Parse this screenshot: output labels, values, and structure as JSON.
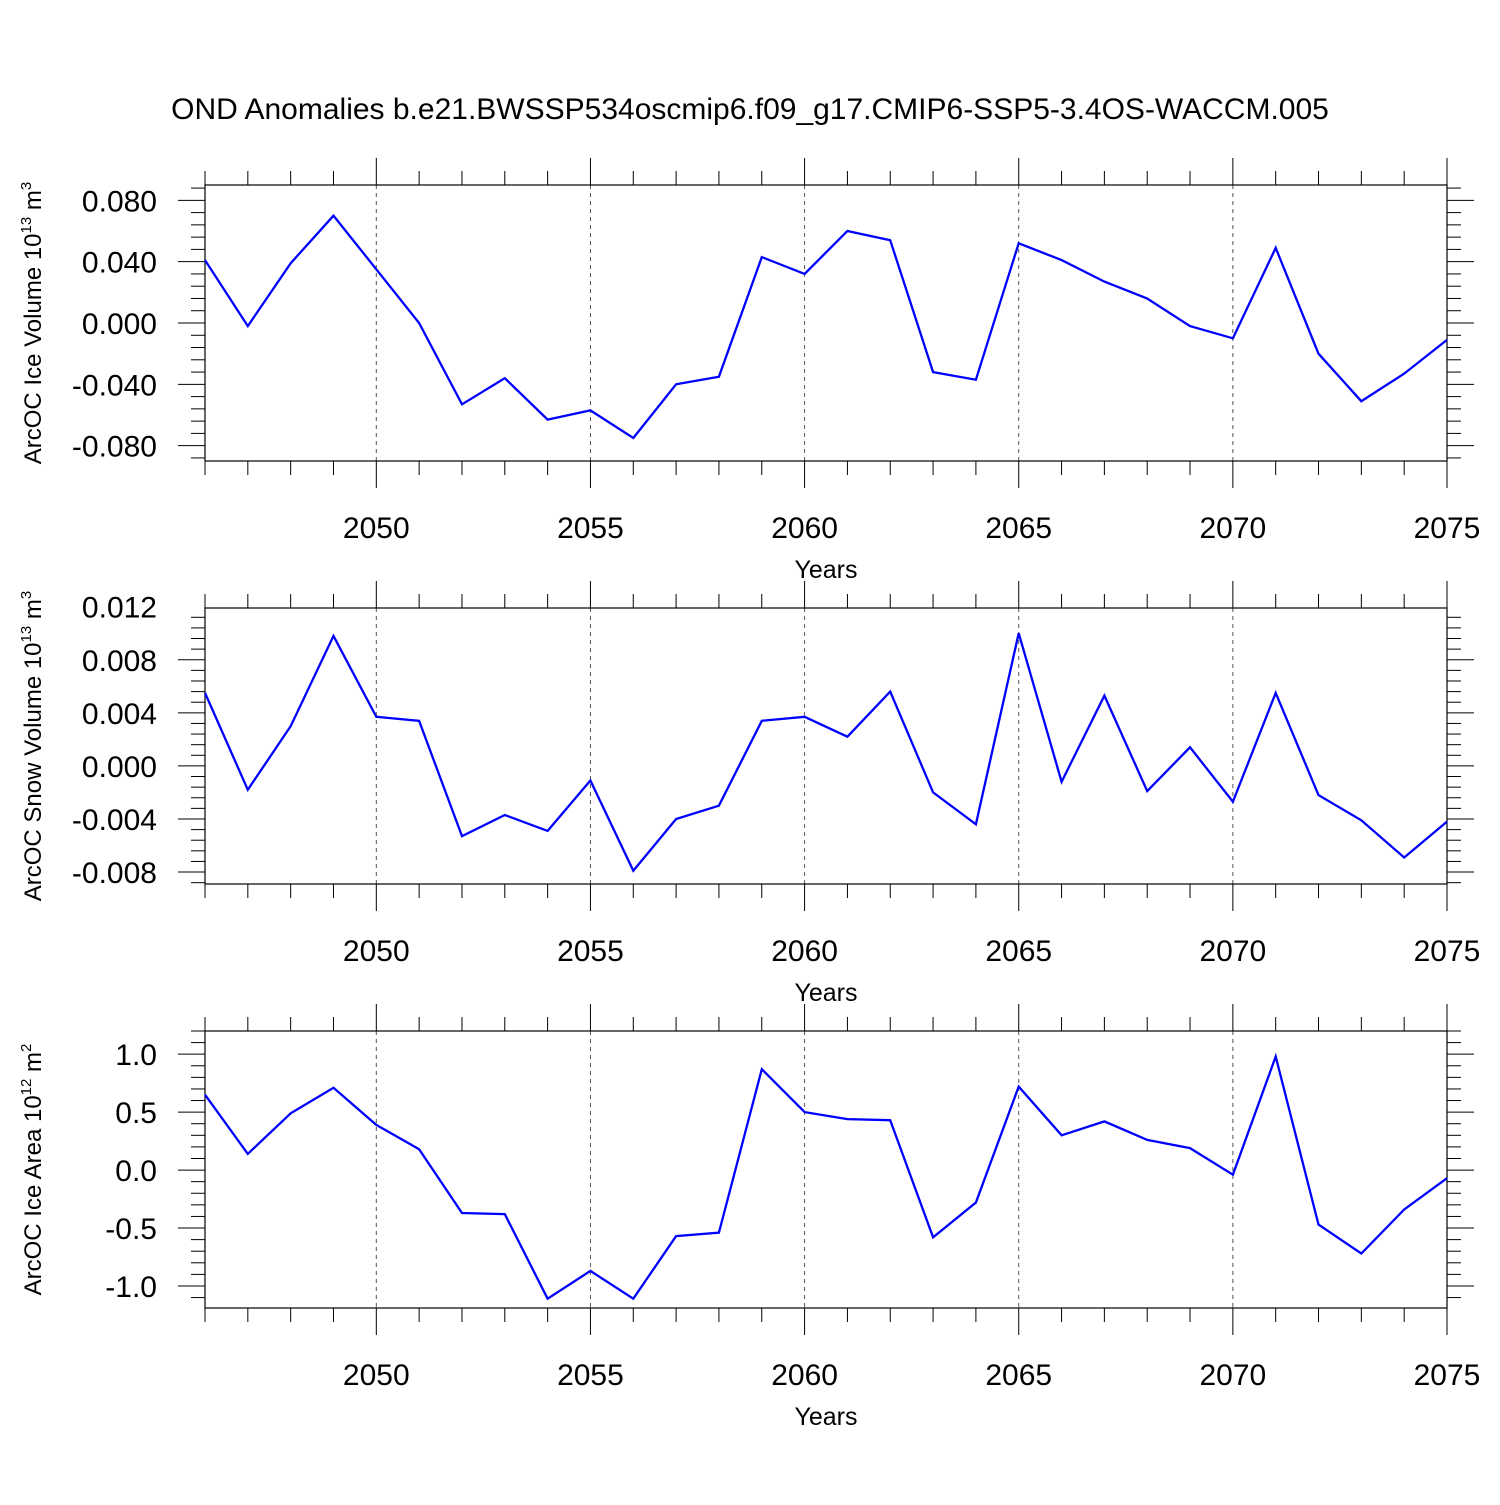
{
  "title": "OND Anomalies b.e21.BWSSP534oscmip6.f09_g17.CMIP6-SSP5-3.4OS-WACCM.005",
  "line_color": "#0000ff",
  "chart_data": [
    {
      "type": "line",
      "ylabel_main": "ArcOC Ice Volume 10",
      "ylabel_exp": "13",
      "ylabel_unit": "m",
      "ylabel_unit_exp": "3",
      "xlabel": "Years",
      "xlim": [
        2046,
        2075
      ],
      "ylim": [
        -0.09,
        0.09
      ],
      "x_ticks": [
        2050,
        2055,
        2060,
        2065,
        2070,
        2075
      ],
      "y_ticks": [
        -0.08,
        -0.04,
        0.0,
        0.04,
        0.08
      ],
      "y_tick_labels": [
        "-0.080",
        "-0.040",
        "0.000",
        "0.040",
        "0.080"
      ],
      "y_minor_step": 0.008,
      "x": [
        2046,
        2047,
        2048,
        2049,
        2050,
        2051,
        2052,
        2053,
        2054,
        2055,
        2056,
        2057,
        2058,
        2059,
        2060,
        2061,
        2062,
        2063,
        2064,
        2065,
        2066,
        2067,
        2068,
        2069,
        2070,
        2071,
        2072,
        2073,
        2074,
        2075
      ],
      "values": [
        0.041,
        -0.002,
        0.039,
        0.07,
        0.035,
        0.0,
        -0.053,
        -0.036,
        -0.063,
        -0.057,
        -0.075,
        -0.04,
        -0.035,
        0.043,
        0.032,
        0.06,
        0.054,
        -0.032,
        -0.037,
        0.052,
        0.041,
        0.027,
        0.016,
        -0.002,
        -0.01,
        0.049,
        -0.02,
        -0.051,
        -0.033,
        -0.011
      ]
    },
    {
      "type": "line",
      "ylabel_main": "ArcOC Snow Volume 10",
      "ylabel_exp": "13",
      "ylabel_unit": "m",
      "ylabel_unit_exp": "3",
      "xlabel": "Years",
      "xlim": [
        2046,
        2075
      ],
      "ylim": [
        -0.0089,
        0.0119
      ],
      "x_ticks": [
        2050,
        2055,
        2060,
        2065,
        2070,
        2075
      ],
      "y_ticks": [
        -0.008,
        -0.004,
        0.0,
        0.004,
        0.008,
        0.012
      ],
      "y_tick_labels": [
        "-0.008",
        "-0.004",
        "0.000",
        "0.004",
        "0.008",
        "0.012"
      ],
      "y_minor_step": 0.0008,
      "x": [
        2046,
        2047,
        2048,
        2049,
        2050,
        2051,
        2052,
        2053,
        2054,
        2055,
        2056,
        2057,
        2058,
        2059,
        2060,
        2061,
        2062,
        2063,
        2064,
        2065,
        2066,
        2067,
        2068,
        2069,
        2070,
        2071,
        2072,
        2073,
        2074,
        2075
      ],
      "values": [
        0.0055,
        -0.0018,
        0.003,
        0.0098,
        0.0037,
        0.0034,
        -0.0053,
        -0.0037,
        -0.0049,
        -0.0011,
        -0.0079,
        -0.004,
        -0.003,
        0.0034,
        0.0037,
        0.0022,
        0.0056,
        -0.002,
        -0.0044,
        0.01,
        -0.0012,
        0.0053,
        -0.0019,
        0.0014,
        -0.0027,
        0.0055,
        -0.0022,
        -0.0041,
        -0.0069,
        -0.0042
      ]
    },
    {
      "type": "line",
      "ylabel_main": "ArcOC Ice Area 10",
      "ylabel_exp": "12",
      "ylabel_unit": "m",
      "ylabel_unit_exp": "2",
      "xlabel": "Years",
      "xlim": [
        2046,
        2075
      ],
      "ylim": [
        -1.19,
        1.2
      ],
      "x_ticks": [
        2050,
        2055,
        2060,
        2065,
        2070,
        2075
      ],
      "y_ticks": [
        -1.0,
        -0.5,
        0.0,
        0.5,
        1.0
      ],
      "y_tick_labels": [
        "-1.0",
        "-0.5",
        "0.0",
        "0.5",
        "1.0"
      ],
      "y_minor_step": 0.1,
      "x": [
        2046,
        2047,
        2048,
        2049,
        2050,
        2051,
        2052,
        2053,
        2054,
        2055,
        2056,
        2057,
        2058,
        2059,
        2060,
        2061,
        2062,
        2063,
        2064,
        2065,
        2066,
        2067,
        2068,
        2069,
        2070,
        2071,
        2072,
        2073,
        2074,
        2075
      ],
      "values": [
        0.65,
        0.14,
        0.49,
        0.71,
        0.39,
        0.18,
        -0.37,
        -0.38,
        -1.11,
        -0.87,
        -1.11,
        -0.57,
        -0.54,
        0.87,
        0.5,
        0.44,
        0.43,
        -0.58,
        -0.28,
        0.72,
        0.3,
        0.42,
        0.26,
        0.19,
        -0.04,
        0.98,
        -0.47,
        -0.72,
        -0.34,
        -0.07
      ]
    }
  ]
}
